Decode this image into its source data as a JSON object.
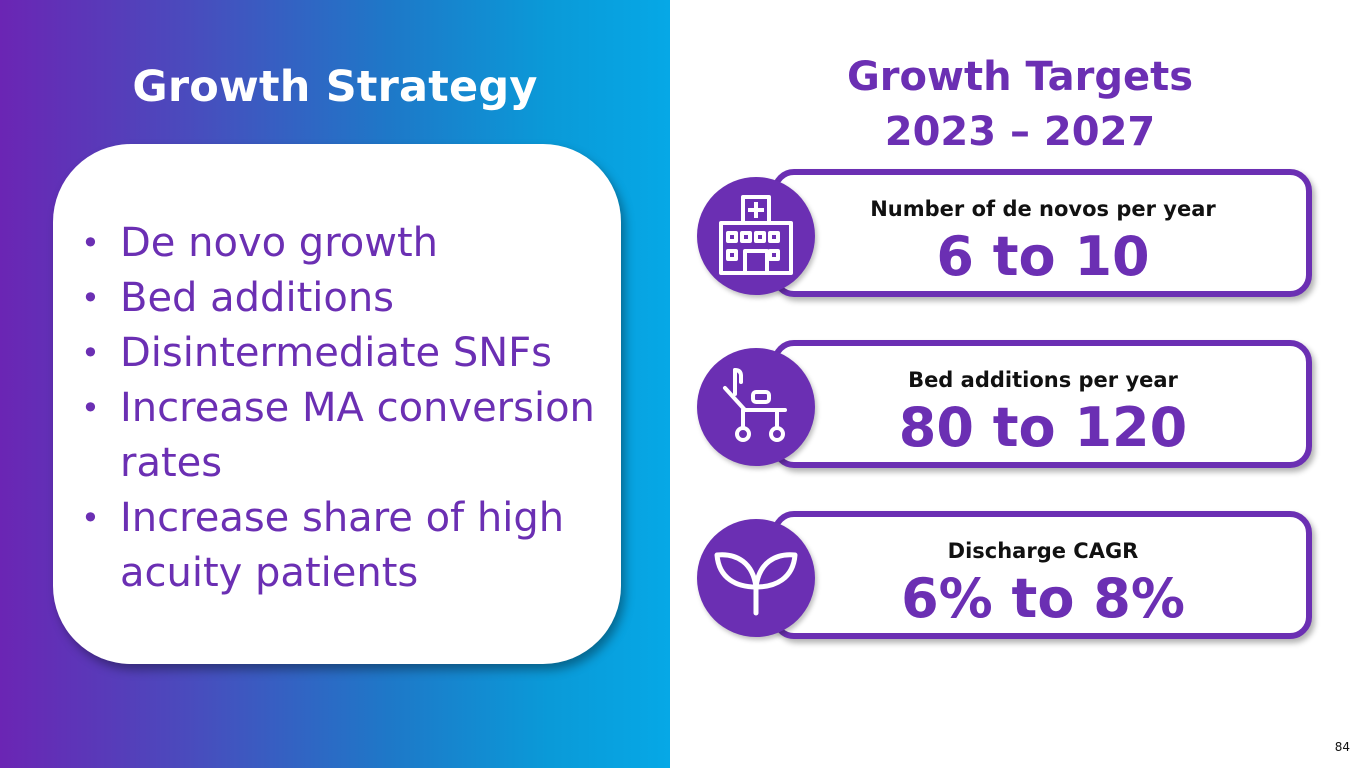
{
  "left": {
    "title": "Growth Strategy",
    "bullets": [
      "De novo growth",
      "Bed additions",
      "Disintermediate SNFs",
      "Increase MA conversion rates",
      "Increase share of high acuity patients"
    ]
  },
  "right": {
    "title_line1": "Growth Targets",
    "title_line2": "2023 – 2027",
    "targets": [
      {
        "label": "Number of de novos per year",
        "value": "6 to 10",
        "icon": "hospital-building-icon"
      },
      {
        "label": "Bed additions per year",
        "value": "80 to 120",
        "icon": "hospital-bed-icon"
      },
      {
        "label": "Discharge CAGR",
        "value": "6% to 8%",
        "icon": "sprout-icon"
      }
    ]
  },
  "page_number": "84",
  "colors": {
    "accent_purple": "#6b2fb3",
    "gradient_start": "#6b25b4",
    "gradient_end": "#06a8e6"
  }
}
